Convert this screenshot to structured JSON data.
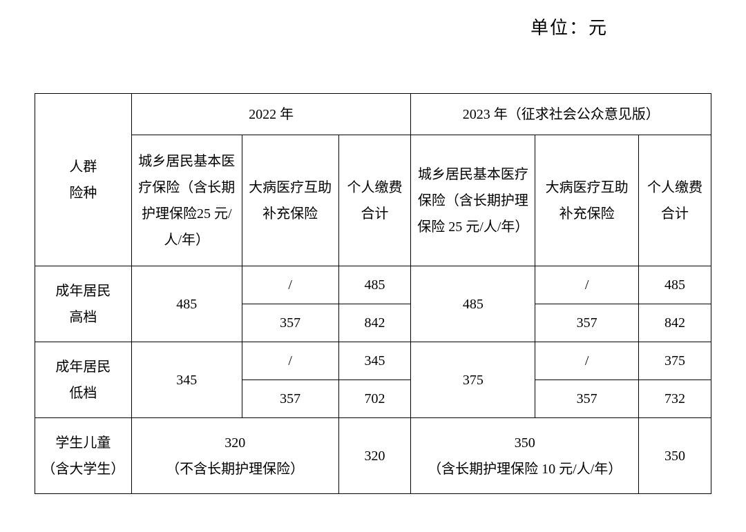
{
  "unit_label": "单位：元",
  "header": {
    "category": "人群\n险种",
    "year2022": "2022 年",
    "year2023": "2023 年（征求社会公众意见版）",
    "col_basic_2022": "城乡居民基本医疗保险（含长期护理保险25 元/人/年）",
    "col_sup_2022": "大病医疗互助补充保险",
    "col_total_2022": "个人缴费合计",
    "col_basic_2023": "城乡居民基本医疗保险（含长期护理保险 25 元/人/年）",
    "col_sup_2023": "大病医疗互助补充保险",
    "col_total_2023": "个人缴费合计"
  },
  "rows": {
    "adult_high": {
      "label": "成年居民\n高档",
      "basic_2022": "485",
      "sup_2022_a": "/",
      "tot_2022_a": "485",
      "sup_2022_b": "357",
      "tot_2022_b": "842",
      "basic_2023": "485",
      "sup_2023_a": "/",
      "tot_2023_a": "485",
      "sup_2023_b": "357",
      "tot_2023_b": "842"
    },
    "adult_low": {
      "label": "成年居民\n低档",
      "basic_2022": "345",
      "sup_2022_a": "/",
      "tot_2022_a": "345",
      "sup_2022_b": "357",
      "tot_2022_b": "702",
      "basic_2023": "375",
      "sup_2023_a": "/",
      "tot_2023_a": "375",
      "sup_2023_b": "357",
      "tot_2023_b": "732"
    },
    "student": {
      "label": "学生儿童\n（含大学生）",
      "basic_2022": "320\n（不含长期护理保险）",
      "tot_2022": "320",
      "basic_2023": "350\n（含长期护理保险 10 元/人/年）",
      "tot_2023": "350"
    }
  },
  "style": {
    "font_family": "SimSun",
    "border_color": "#000000",
    "background": "#ffffff",
    "text_color": "#000000",
    "header_fontsize": 20,
    "cell_fontsize": 20,
    "unit_fontsize": 26
  }
}
